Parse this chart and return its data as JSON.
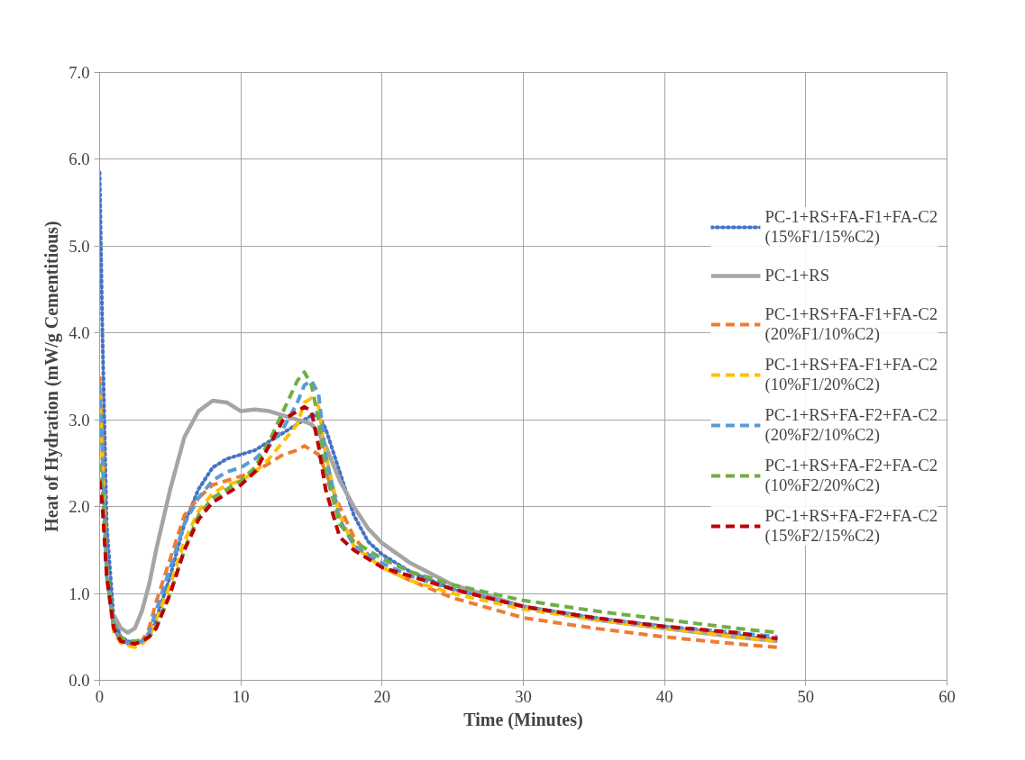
{
  "chart_data": {
    "type": "line",
    "xlabel": "Time (Minutes)",
    "ylabel": "Heat of Hydration (mW/g Cementitious)",
    "x": [
      0,
      0.2,
      0.5,
      1,
      1.5,
      2,
      2.5,
      3,
      3.5,
      4,
      5,
      6,
      7,
      8,
      9,
      10,
      11,
      12,
      13,
      14,
      14.5,
      15,
      15.5,
      16,
      17,
      18,
      19,
      20,
      22,
      25,
      30,
      35,
      40,
      45,
      48
    ],
    "xlim": [
      0,
      60
    ],
    "xticks": [
      0,
      10,
      20,
      30,
      40,
      50,
      60
    ],
    "ylim": [
      0,
      7
    ],
    "yticks": [
      {
        "value": 0,
        "label": "0.0"
      },
      {
        "value": 1,
        "label": "1.0"
      },
      {
        "value": 2,
        "label": "2.0"
      },
      {
        "value": 3,
        "label": "3.0"
      },
      {
        "value": 4,
        "label": "4.0"
      },
      {
        "value": 5,
        "label": "5.0"
      },
      {
        "value": 6,
        "label": "6.0"
      },
      {
        "value": 7,
        "label": "7.0"
      }
    ],
    "grid": true,
    "legend": "right",
    "series": [
      {
        "name": "PC-1+RS+FA-F1+FA-C2\n(15%F1/15%C2)",
        "color": "#4472c4",
        "line_style": "dotted",
        "values": [
          5.85,
          4.0,
          1.8,
          0.7,
          0.5,
          0.45,
          0.43,
          0.45,
          0.5,
          0.7,
          1.2,
          1.8,
          2.2,
          2.45,
          2.55,
          2.6,
          2.65,
          2.75,
          2.85,
          2.95,
          3.0,
          3.05,
          3.05,
          2.9,
          2.4,
          1.9,
          1.6,
          1.45,
          1.25,
          1.05,
          0.85,
          0.72,
          0.62,
          0.52,
          0.47
        ]
      },
      {
        "name": "PC-1+RS",
        "color": "#a5a5a5",
        "line_style": "solid",
        "values": [
          null,
          null,
          null,
          0.75,
          0.6,
          0.55,
          0.6,
          0.8,
          1.1,
          1.5,
          2.2,
          2.8,
          3.1,
          3.22,
          3.2,
          3.1,
          3.12,
          3.1,
          3.05,
          3.0,
          2.98,
          2.95,
          2.85,
          2.7,
          2.3,
          2.0,
          1.75,
          1.58,
          1.35,
          1.1,
          0.85,
          0.7,
          0.6,
          0.5,
          0.45
        ]
      },
      {
        "name": "PC-1+RS+FA-F1+FA-C2\n(20%F1/10%C2)",
        "color": "#ed7d31",
        "line_style": "dashed",
        "values": [
          3.5,
          2.8,
          1.3,
          0.6,
          0.45,
          0.42,
          0.4,
          0.45,
          0.6,
          0.9,
          1.4,
          1.9,
          2.1,
          2.25,
          2.3,
          2.35,
          2.4,
          2.5,
          2.6,
          2.65,
          2.7,
          2.65,
          2.6,
          2.4,
          2.0,
          1.65,
          1.45,
          1.3,
          1.15,
          0.95,
          0.72,
          0.6,
          0.5,
          0.42,
          0.38
        ]
      },
      {
        "name": "PC-1+RS+FA-F1+FA-C2\n(10%F1/20%C2)",
        "color": "#ffc000",
        "line_style": "dashed",
        "values": [
          3.3,
          2.5,
          1.2,
          0.55,
          0.43,
          0.4,
          0.38,
          0.42,
          0.5,
          0.7,
          1.1,
          1.6,
          1.95,
          2.15,
          2.25,
          2.3,
          2.4,
          2.55,
          2.75,
          2.95,
          3.2,
          3.25,
          3.15,
          2.6,
          1.9,
          1.55,
          1.42,
          1.3,
          1.15,
          1.0,
          0.82,
          0.7,
          0.6,
          0.5,
          0.45
        ]
      },
      {
        "name": "PC-1+RS+FA-F2+FA-C2\n(20%F2/10%C2)",
        "color": "#5b9bd5",
        "line_style": "dashed",
        "values": [
          3.4,
          2.6,
          1.2,
          0.6,
          0.45,
          0.43,
          0.42,
          0.45,
          0.55,
          0.8,
          1.3,
          1.8,
          2.1,
          2.3,
          2.4,
          2.45,
          2.55,
          2.7,
          2.9,
          3.2,
          3.4,
          3.45,
          3.3,
          2.6,
          1.85,
          1.55,
          1.45,
          1.35,
          1.2,
          1.05,
          0.85,
          0.72,
          0.62,
          0.55,
          0.5
        ]
      },
      {
        "name": "PC-1+RS+FA-F2+FA-C2\n(10%F2/20%C2)",
        "color": "#70ad47",
        "line_style": "dashed",
        "values": [
          2.5,
          2.2,
          1.3,
          0.65,
          0.5,
          0.45,
          0.45,
          0.47,
          0.5,
          0.6,
          1.0,
          1.5,
          1.9,
          2.1,
          2.2,
          2.3,
          2.45,
          2.75,
          3.1,
          3.45,
          3.55,
          3.4,
          3.0,
          2.4,
          1.8,
          1.6,
          1.5,
          1.4,
          1.25,
          1.1,
          0.92,
          0.8,
          0.7,
          0.6,
          0.55
        ]
      },
      {
        "name": "PC-1+RS+FA-F2+FA-C2\n(15%F2/15%C2)",
        "color": "#c00000",
        "line_style": "dashed",
        "values": [
          2.3,
          2.0,
          1.2,
          0.6,
          0.45,
          0.43,
          0.42,
          0.45,
          0.5,
          0.6,
          1.0,
          1.5,
          1.85,
          2.05,
          2.15,
          2.25,
          2.4,
          2.7,
          3.0,
          3.1,
          3.15,
          3.1,
          2.7,
          2.2,
          1.65,
          1.5,
          1.4,
          1.3,
          1.2,
          1.05,
          0.85,
          0.72,
          0.62,
          0.55,
          0.48
        ]
      }
    ]
  }
}
